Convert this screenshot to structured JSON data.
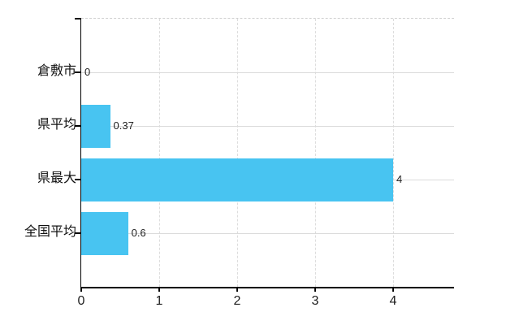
{
  "figure": {
    "background": "#ffffff"
  },
  "chart_data": {
    "type": "bar",
    "orientation": "horizontal",
    "title": "",
    "xlabel": "",
    "ylabel": "",
    "categories": [
      "倉敷市",
      "県平均",
      "県最大",
      "全国平均"
    ],
    "values": [
      0,
      0.37,
      4,
      0.6
    ],
    "value_labels": [
      "0",
      "0.37",
      "4",
      "0.6"
    ],
    "x_ticks": [
      0,
      1,
      2,
      3,
      4
    ],
    "xlim": [
      0,
      4.78
    ],
    "grid": true,
    "legend": "none",
    "bar_color": "#48c4f1",
    "axis_color": "#000000",
    "gridline_color": "#dbdbdb",
    "top_border_color": "#cfcfcf",
    "text_color": "#222222"
  }
}
